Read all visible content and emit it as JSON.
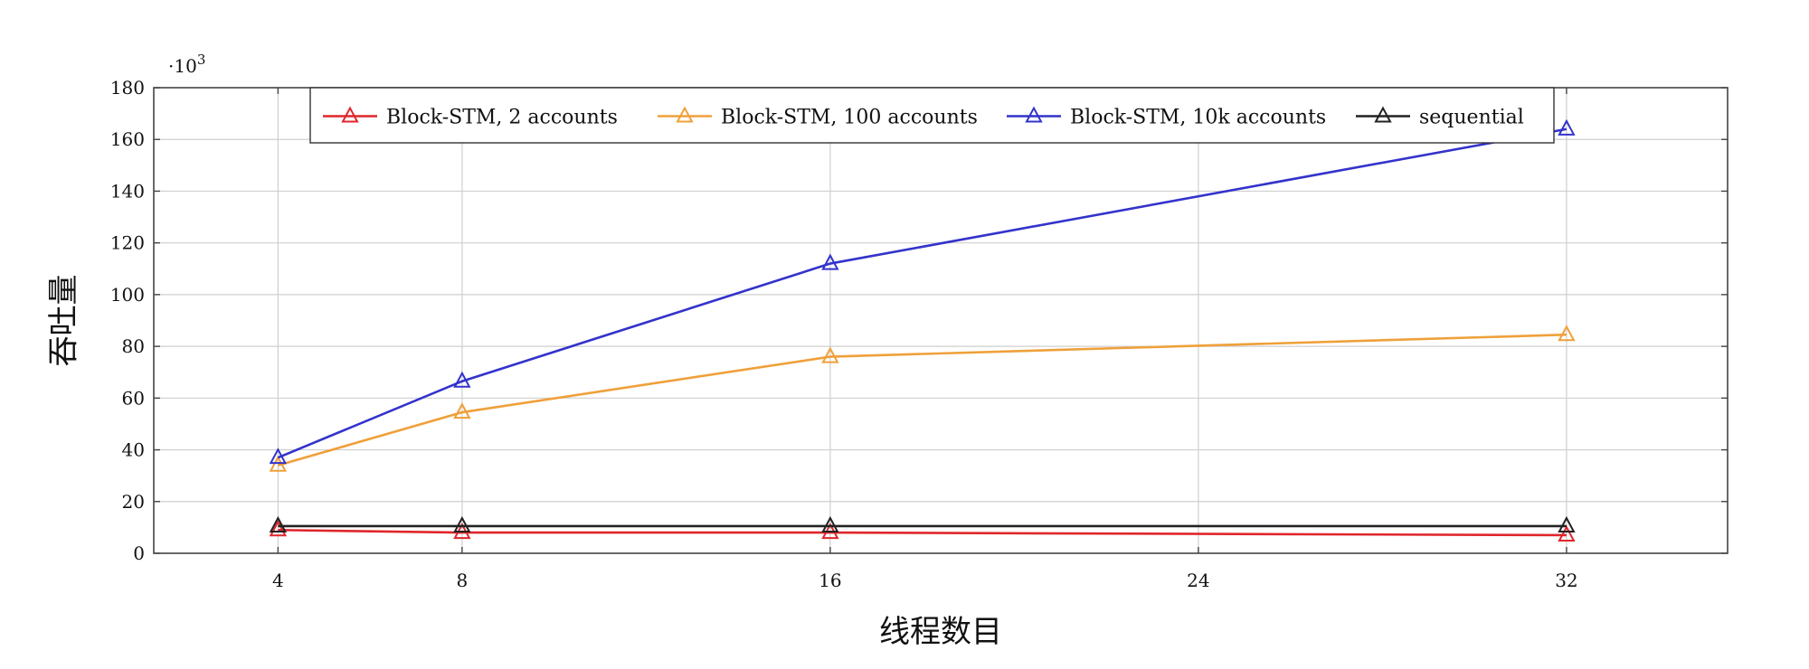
{
  "chart_data": {
    "type": "line",
    "title": "",
    "xlabel": "线程数目",
    "ylabel": "吞吐量",
    "y_multiplier": "·10",
    "y_multiplier_exp": "3",
    "x": [
      4,
      8,
      16,
      32
    ],
    "xticks": [
      4,
      8,
      16,
      24,
      32
    ],
    "yticks": [
      0,
      20,
      40,
      60,
      80,
      100,
      120,
      140,
      160,
      180
    ],
    "xlim": [
      1.3,
      35.5
    ],
    "ylim": [
      0,
      180
    ],
    "grid": true,
    "legend_position": "top-center",
    "series": [
      {
        "name": "Block-STM, 2 accounts",
        "color": "#e0262c",
        "values": [
          9,
          8,
          8,
          7
        ]
      },
      {
        "name": "Block-STM, 100 accounts",
        "color": "#efa03a",
        "values": [
          34,
          54.5,
          76,
          84.5
        ]
      },
      {
        "name": "Block-STM, 10k accounts",
        "color": "#3333cc",
        "values": [
          37,
          66.5,
          112,
          164
        ]
      },
      {
        "name": "sequential",
        "color": "#222222",
        "values": [
          10.5,
          10.5,
          10.5,
          10.5
        ]
      }
    ]
  }
}
